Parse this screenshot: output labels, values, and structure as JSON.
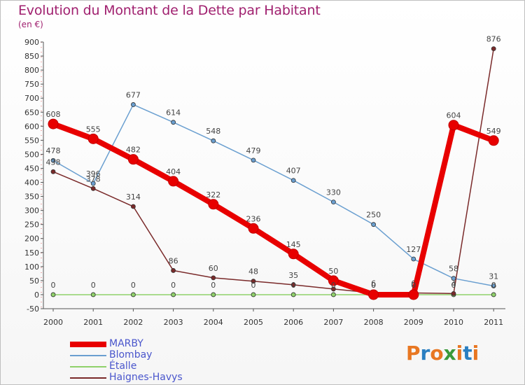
{
  "header": {
    "title": "Evolution du Montant de la Dette par Habitant",
    "subtitle": "(en €)"
  },
  "logo": {
    "text": "Proxiti",
    "colors": [
      "#e87722",
      "#2a7fc1",
      "#e87722",
      "#3a9a3a",
      "#e87722",
      "#2a7fc1",
      "#e87722"
    ]
  },
  "chart_data": {
    "type": "line",
    "title": "Evolution du Montant de la Dette par Habitant",
    "subtitle": "(en €)",
    "x": [
      "2000",
      "2001",
      "2002",
      "2003",
      "2004",
      "2005",
      "2006",
      "2007",
      "2008",
      "2009",
      "2010",
      "2011"
    ],
    "yticks": [
      -50,
      0,
      50,
      100,
      150,
      200,
      250,
      300,
      350,
      400,
      450,
      500,
      550,
      600,
      650,
      700,
      750,
      800,
      850,
      900
    ],
    "ylim": [
      -50,
      900
    ],
    "grid": false,
    "legend_position": "bottom-left",
    "series": [
      {
        "name": "MARBY",
        "color": "#e80000",
        "width": 8,
        "marker": 7,
        "values": [
          608,
          555,
          482,
          404,
          322,
          236,
          145,
          50,
          0,
          0,
          604,
          549
        ],
        "labels": [
          "608",
          "555",
          "482",
          "404",
          "322",
          "236",
          "145",
          "50",
          "0",
          "0",
          "604",
          "549"
        ]
      },
      {
        "name": "Blombay",
        "color": "#6a9fd0",
        "width": 1.5,
        "marker": 3,
        "values": [
          478,
          396,
          677,
          614,
          548,
          479,
          407,
          330,
          250,
          127,
          58,
          31
        ],
        "labels": [
          "478",
          "396",
          "677",
          "614",
          "548",
          "479",
          "407",
          "330",
          "250",
          "127",
          "58",
          "31"
        ]
      },
      {
        "name": "Étalle",
        "color": "#8fd16a",
        "width": 1.5,
        "marker": 3,
        "values": [
          0,
          0,
          0,
          0,
          0,
          0,
          0,
          0,
          0,
          0,
          0,
          0
        ],
        "labels": [
          "0",
          "0",
          "0",
          "0",
          "0",
          "0",
          "0",
          "0",
          "0",
          "0",
          "0",
          "0"
        ]
      },
      {
        "name": "Haignes-Havys",
        "color": "#7a2a2a",
        "width": 1.5,
        "marker": 3,
        "values": [
          438,
          378,
          314,
          86,
          60,
          48,
          35,
          20,
          6,
          6,
          4,
          876
        ],
        "labels": [
          "438",
          "378",
          "314",
          "86",
          "60",
          "48",
          "35",
          "",
          "6",
          "6",
          "4",
          "876"
        ]
      }
    ]
  }
}
